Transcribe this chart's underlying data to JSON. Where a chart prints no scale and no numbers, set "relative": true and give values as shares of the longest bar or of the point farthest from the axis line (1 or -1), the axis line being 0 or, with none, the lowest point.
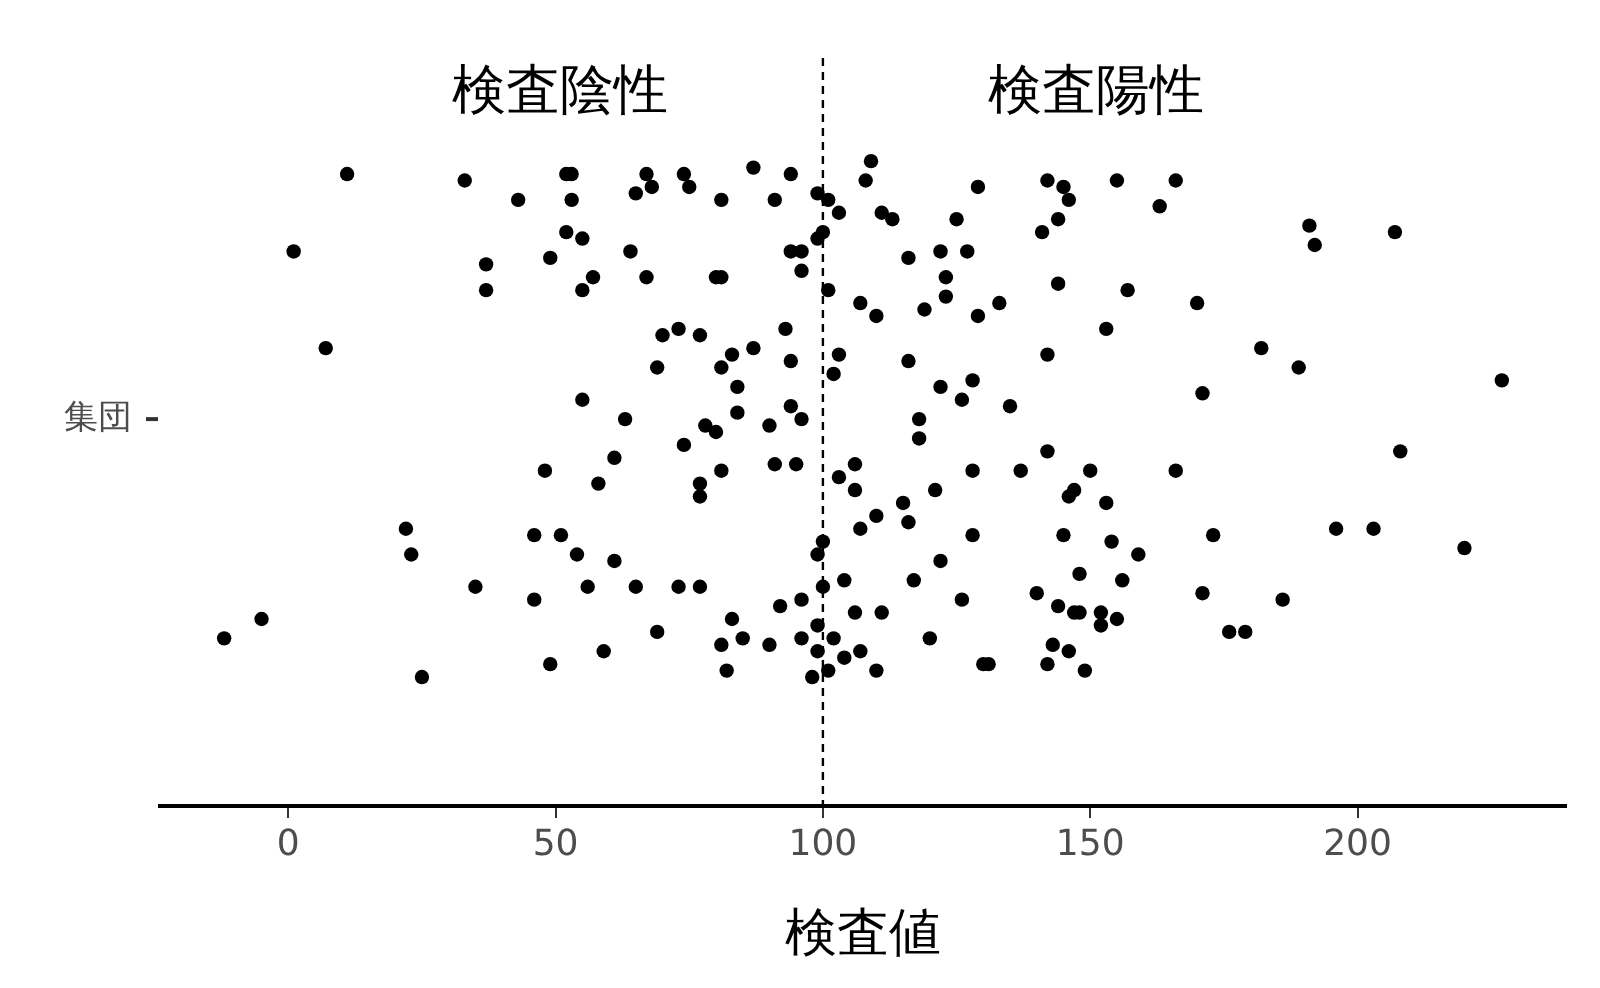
{
  "chart_data": {
    "type": "scatter",
    "xlabel": "検査値",
    "color": "#000000",
    "marker": "circle",
    "grid": false,
    "legend": false,
    "relative": true,
    "xlim": [
      -24,
      239
    ],
    "xticks": [
      0,
      50,
      100,
      150,
      200
    ],
    "ref_lines": [
      {
        "axis": "x",
        "value": 100,
        "color": "#000000",
        "line_style": "dashed"
      }
    ],
    "annotations": [
      "検査陰性",
      "検査陽性",
      "集団"
    ],
    "x": [
      11,
      1,
      7,
      33,
      43,
      53,
      52,
      53,
      52,
      55,
      49,
      37,
      37,
      57,
      55,
      64,
      67,
      68,
      65,
      67,
      70,
      69,
      55,
      63,
      74,
      75,
      81,
      87,
      94,
      91,
      99,
      101,
      103,
      109,
      108,
      111,
      113,
      116,
      122,
      127,
      123,
      123,
      125,
      129,
      142,
      145,
      146,
      144,
      141,
      155,
      144,
      157,
      153,
      142,
      133,
      129,
      119,
      107,
      110,
      101,
      80,
      81,
      94,
      96,
      96,
      99,
      100,
      73,
      77,
      93,
      83,
      87,
      94,
      81,
      84,
      84,
      78,
      90,
      94,
      96,
      103,
      102,
      116,
      122,
      128,
      126,
      135,
      118,
      166,
      163,
      191,
      192,
      207,
      170,
      182,
      189,
      171,
      227,
      61,
      48,
      58,
      22,
      23,
      46,
      51,
      54,
      61,
      35,
      46,
      56,
      65,
      69,
      49,
      59,
      -5,
      -12,
      25,
      80,
      74,
      118,
      142,
      150,
      147,
      146,
      153,
      81,
      77,
      77,
      91,
      95,
      103,
      106,
      106,
      115,
      116,
      110,
      107,
      121,
      128,
      137,
      128,
      122,
      117,
      145,
      154,
      159,
      100,
      99,
      104,
      100,
      148,
      156,
      73,
      77,
      92,
      96,
      140,
      144,
      147,
      148,
      152,
      155,
      152,
      126,
      111,
      106,
      83,
      99,
      96,
      81,
      85,
      90,
      99,
      102,
      104,
      107,
      120,
      143,
      146,
      82,
      98,
      101,
      110,
      130,
      131,
      142,
      149,
      208,
      166,
      173,
      196,
      203,
      220,
      171,
      186,
      176,
      179
    ],
    "values": [
      0.98,
      0.86,
      0.71,
      0.97,
      0.94,
      0.98,
      0.98,
      0.94,
      0.89,
      0.88,
      0.85,
      0.84,
      0.8,
      0.82,
      0.8,
      0.86,
      0.98,
      0.96,
      0.95,
      0.82,
      0.73,
      0.68,
      0.63,
      0.6,
      0.98,
      0.96,
      0.94,
      0.99,
      0.98,
      0.94,
      0.95,
      0.94,
      0.92,
      1.0,
      0.97,
      0.92,
      0.91,
      0.85,
      0.86,
      0.86,
      0.82,
      0.79,
      0.91,
      0.96,
      0.97,
      0.96,
      0.94,
      0.91,
      0.89,
      0.97,
      0.81,
      0.8,
      0.74,
      0.7,
      0.78,
      0.76,
      0.77,
      0.78,
      0.76,
      0.8,
      0.82,
      0.82,
      0.86,
      0.86,
      0.83,
      0.88,
      0.89,
      0.74,
      0.73,
      0.74,
      0.7,
      0.71,
      0.69,
      0.68,
      0.65,
      0.61,
      0.59,
      0.59,
      0.62,
      0.6,
      0.7,
      0.67,
      0.69,
      0.65,
      0.66,
      0.63,
      0.62,
      0.6,
      0.97,
      0.93,
      0.9,
      0.87,
      0.89,
      0.78,
      0.71,
      0.68,
      0.64,
      0.66,
      0.54,
      0.52,
      0.5,
      0.43,
      0.39,
      0.42,
      0.42,
      0.39,
      0.38,
      0.34,
      0.32,
      0.34,
      0.34,
      0.27,
      0.22,
      0.24,
      0.29,
      0.26,
      0.2,
      0.58,
      0.56,
      0.57,
      0.55,
      0.52,
      0.49,
      0.48,
      0.47,
      0.52,
      0.5,
      0.48,
      0.53,
      0.53,
      0.51,
      0.53,
      0.49,
      0.47,
      0.44,
      0.45,
      0.43,
      0.49,
      0.52,
      0.52,
      0.42,
      0.38,
      0.35,
      0.42,
      0.41,
      0.39,
      0.41,
      0.39,
      0.35,
      0.34,
      0.36,
      0.35,
      0.34,
      0.34,
      0.31,
      0.32,
      0.33,
      0.31,
      0.3,
      0.3,
      0.3,
      0.29,
      0.28,
      0.32,
      0.3,
      0.3,
      0.29,
      0.28,
      0.26,
      0.25,
      0.26,
      0.25,
      0.24,
      0.26,
      0.23,
      0.24,
      0.26,
      0.25,
      0.24,
      0.21,
      0.2,
      0.21,
      0.21,
      0.22,
      0.22,
      0.22,
      0.21,
      0.55,
      0.52,
      0.42,
      0.43,
      0.43,
      0.4,
      0.33,
      0.32,
      0.27,
      0.27
    ]
  }
}
